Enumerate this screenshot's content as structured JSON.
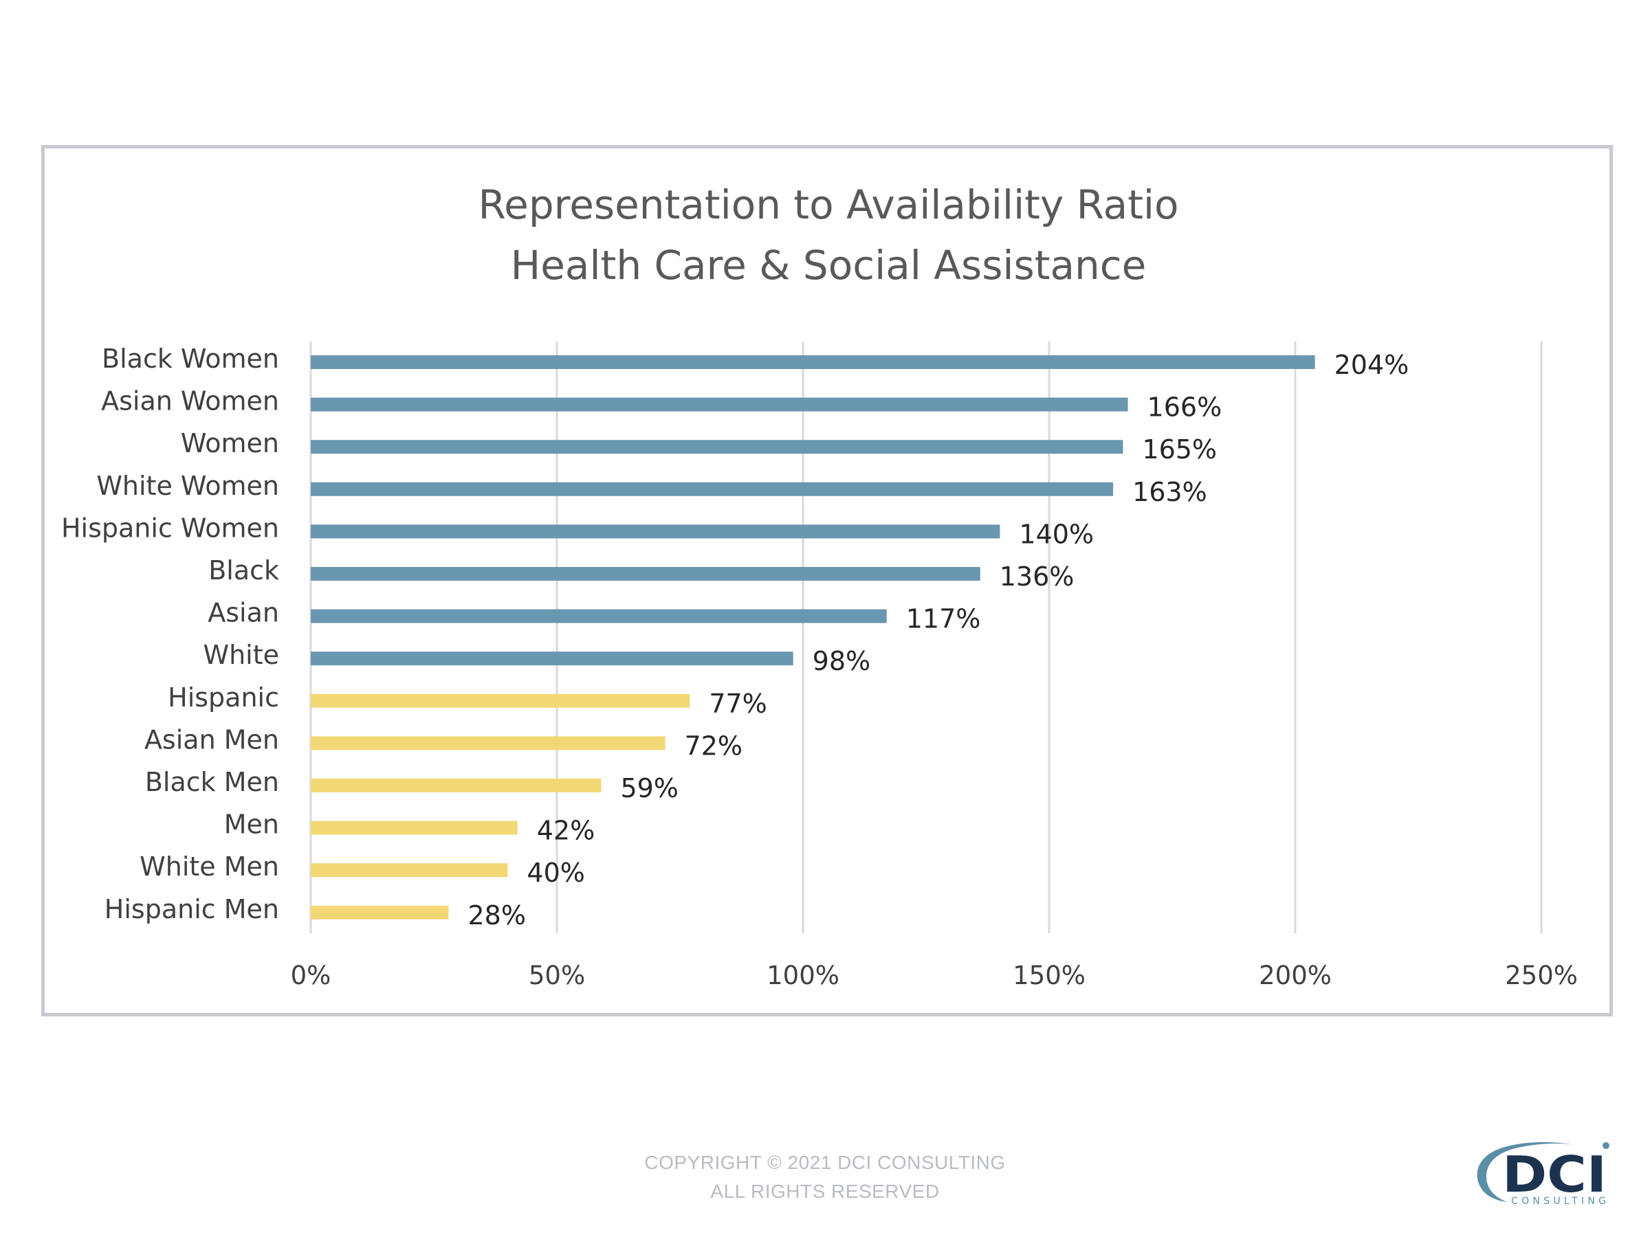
{
  "chart_data": {
    "type": "bar",
    "orientation": "horizontal",
    "title": [
      "Representation to Availability Ratio",
      "Health Care & Social Assistance"
    ],
    "xlabel": "",
    "ylabel": "",
    "categories": [
      "Black Women",
      "Asian Women",
      "Women",
      "White Women",
      "Hispanic Women",
      "Black",
      "Asian",
      "White",
      "Hispanic",
      "Asian Men",
      "Black Men",
      "Men",
      "White Men",
      "Hispanic Men"
    ],
    "values": [
      204,
      166,
      165,
      163,
      140,
      136,
      117,
      98,
      77,
      72,
      59,
      42,
      40,
      28
    ],
    "value_labels": [
      "204%",
      "166%",
      "165%",
      "163%",
      "140%",
      "136%",
      "117%",
      "98%",
      "77%",
      "72%",
      "59%",
      "42%",
      "40%",
      "28%"
    ],
    "bar_colors": [
      "#6a97b0",
      "#6a97b0",
      "#6a97b0",
      "#6a97b0",
      "#6a97b0",
      "#6a97b0",
      "#6a97b0",
      "#6a97b0",
      "#f2d875",
      "#f2d875",
      "#f2d875",
      "#f2d875",
      "#f2d875",
      "#f2d875"
    ],
    "xlim": [
      0,
      250
    ],
    "x_ticks": [
      0,
      50,
      100,
      150,
      200,
      250
    ],
    "x_tick_labels": [
      "0%",
      "50%",
      "100%",
      "150%",
      "200%",
      "250%"
    ],
    "grid": true,
    "legend": "none"
  },
  "footer": {
    "copyright": "COPYRIGHT © 2021 DCI CONSULTING",
    "rights": "ALL RIGHTS RESERVED"
  },
  "logo": {
    "text": "DCI",
    "subtext": "CONSULTING"
  },
  "colors": {
    "blue_bar": "#6a97b0",
    "yellow_bar": "#f2d875",
    "logo_navy": "#1c3350",
    "logo_teal": "#5b8fa8"
  }
}
